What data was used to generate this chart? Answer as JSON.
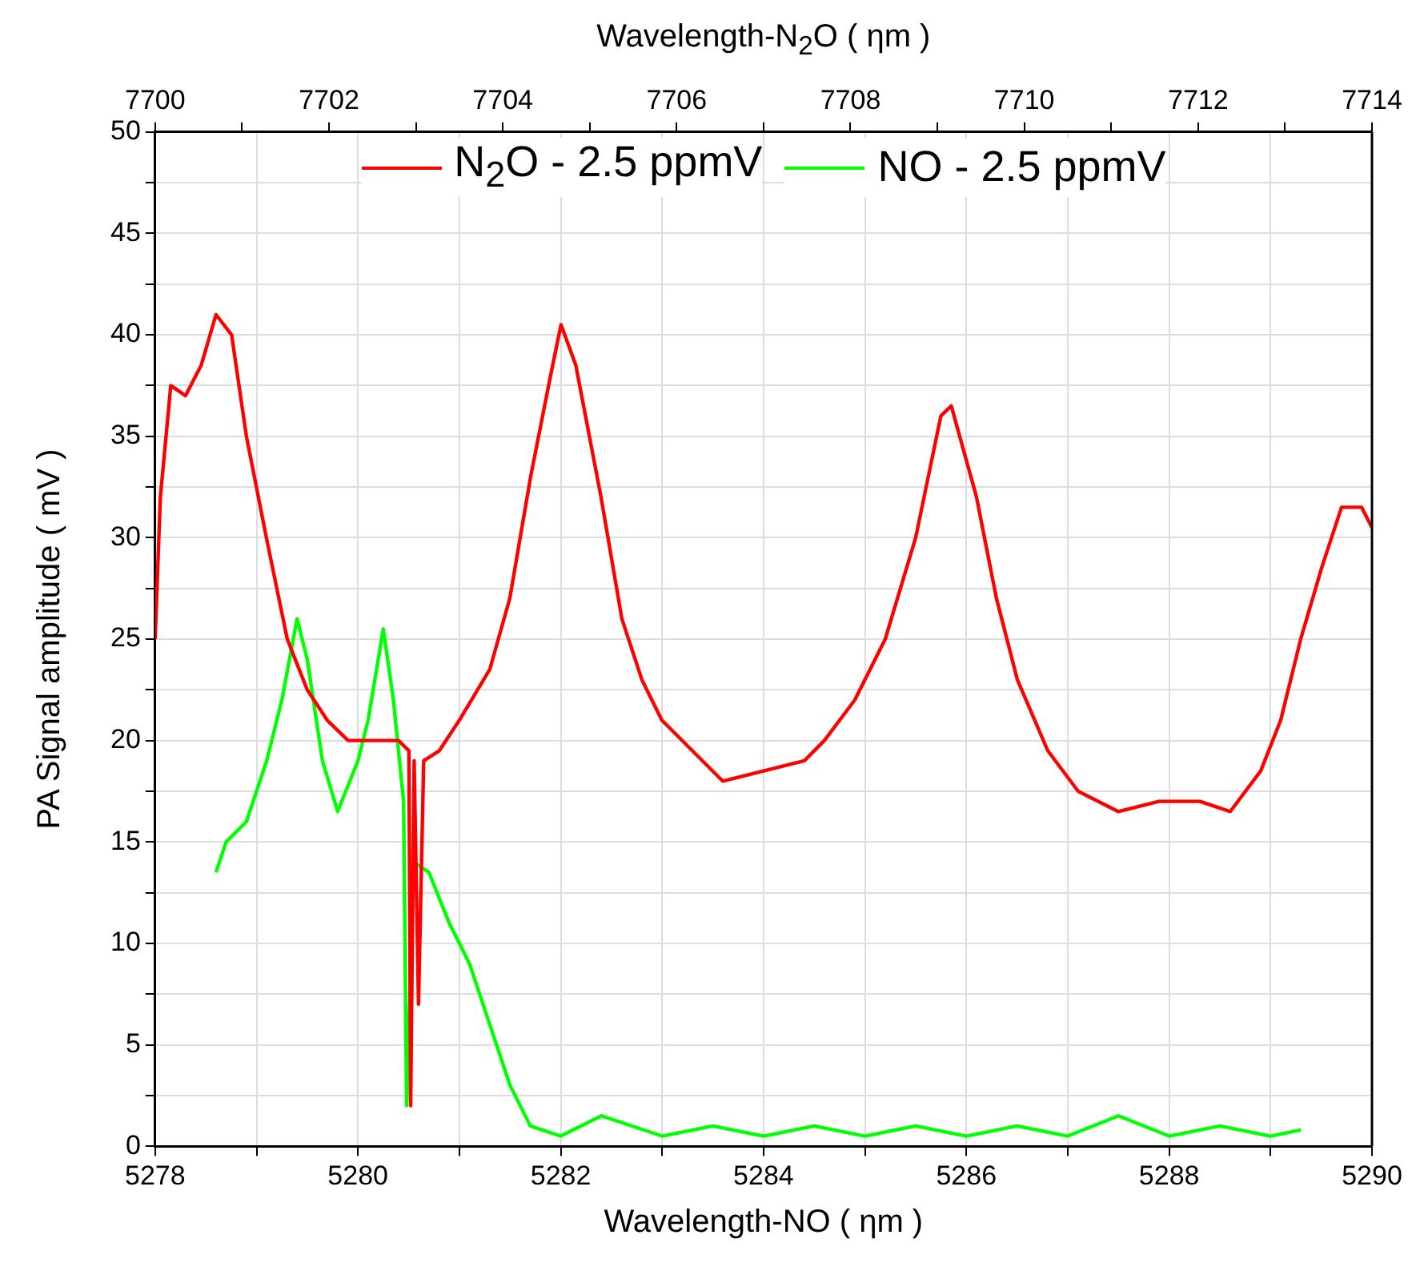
{
  "chart_data": {
    "type": "line",
    "xlabel": "Wavelength-NO ( ηm )",
    "x2label": "Wavelength-N$_{2}$O ( ηm )",
    "ylabel": "PA Signal amplitude ( mV )",
    "xlim": [
      5278,
      5290
    ],
    "xticks": [
      5278,
      {
        "value": 5279,
        "label": null
      },
      5280,
      {
        "value": 5281,
        "label": null
      },
      5282,
      {
        "value": 5283,
        "label": null
      },
      5284,
      {
        "value": 5285,
        "label": null
      },
      5286,
      {
        "value": 5287,
        "label": null
      },
      5288,
      {
        "value": 5289,
        "label": null
      },
      5290
    ],
    "x2lim": [
      7700,
      7714
    ],
    "x2ticks": [
      7700,
      {
        "value": 7701,
        "label": null
      },
      7702,
      {
        "value": 7703,
        "label": null
      },
      7704,
      {
        "value": 7705,
        "label": null
      },
      7706,
      {
        "value": 7707,
        "label": null
      },
      7708,
      {
        "value": 7709,
        "label": null
      },
      7710,
      {
        "value": 7711,
        "label": null
      },
      7712,
      {
        "value": 7713,
        "label": null
      },
      7714
    ],
    "ylim": [
      0,
      50
    ],
    "yticks": [
      0,
      {
        "value": 2.5,
        "label": null
      },
      5,
      {
        "value": 7.5,
        "label": null
      },
      10,
      {
        "value": 12.5,
        "label": null
      },
      15,
      {
        "value": 17.5,
        "label": null
      },
      20,
      {
        "value": 22.5,
        "label": null
      },
      25,
      {
        "value": 27.5,
        "label": null
      },
      30,
      {
        "value": 32.5,
        "label": null
      },
      35,
      {
        "value": 37.5,
        "label": null
      },
      40,
      {
        "value": 42.5,
        "label": null
      },
      45,
      {
        "value": 47.5,
        "label": null
      },
      50
    ],
    "grid": true,
    "legend": "top",
    "marker": "none",
    "line_style": "solid",
    "series": [
      {
        "name": "N$_{2}$O - 2.5 ppmV",
        "color": "#ff0000",
        "axis": "x2",
        "x": [
          7700,
          7700.06,
          7700.18,
          7700.35,
          7700.53,
          7700.7,
          7700.88,
          7701.05,
          7701.28,
          7701.52,
          7701.75,
          7701.98,
          7702.22,
          7702.57,
          7702.8,
          7702.92,
          7702.94,
          7702.98,
          7703.03,
          7703.09,
          7703.27,
          7703.5,
          7703.85,
          7704.08,
          7704.32,
          7704.55,
          7704.67,
          7704.84,
          7705.13,
          7705.37,
          7705.6,
          7705.83,
          7706.18,
          7706.53,
          7707.0,
          7707.47,
          7707.7,
          7708.05,
          7708.4,
          7708.75,
          7709.04,
          7709.16,
          7709.45,
          7709.68,
          7709.92,
          7710.27,
          7710.62,
          7711.08,
          7711.55,
          7712.02,
          7712.37,
          7712.72,
          7712.95,
          7713.18,
          7713.42,
          7713.65,
          7713.88,
          7714
        ],
        "values": [
          25,
          32,
          37.5,
          37,
          38.5,
          41,
          40,
          35,
          30,
          25,
          22.5,
          21,
          20,
          20,
          20,
          19.5,
          2,
          19,
          7,
          19,
          19.5,
          21,
          23.5,
          27,
          33,
          38,
          40.5,
          38.5,
          32,
          26,
          23,
          21,
          19.5,
          18,
          18.5,
          19,
          20,
          22,
          25,
          30,
          36,
          36.5,
          32,
          27,
          23,
          19.5,
          17.5,
          16.5,
          17,
          17,
          16.5,
          18.5,
          21,
          25,
          28.5,
          31.5,
          31.5,
          30.5
        ]
      },
      {
        "name": "NO - 2.5 ppmV",
        "color": "#00ff00",
        "x": [
          5278.6,
          5278.7,
          5278.9,
          5279.1,
          5279.25,
          5279.4,
          5279.5,
          5279.65,
          5279.8,
          5280.0,
          5280.1,
          5280.25,
          5280.35,
          5280.45,
          5280.48,
          5280.55,
          5280.7,
          5280.9,
          5281.1,
          5281.3,
          5281.5,
          5281.7,
          5282,
          5282.4,
          5283,
          5283.5,
          5284,
          5284.5,
          5285,
          5285.5,
          5286,
          5286.5,
          5287,
          5287.5,
          5288,
          5288.5,
          5289,
          5289.3
        ],
        "values": [
          13.5,
          15,
          16,
          19,
          22,
          26,
          24,
          19,
          16.5,
          19,
          21,
          25.5,
          22,
          17,
          2,
          14,
          13.5,
          11,
          9,
          6,
          3,
          1,
          0.5,
          1.5,
          0.5,
          1,
          0.5,
          1,
          0.5,
          1,
          0.5,
          1,
          0.5,
          1.5,
          0.5,
          1,
          0.5,
          0.8
        ]
      }
    ]
  }
}
